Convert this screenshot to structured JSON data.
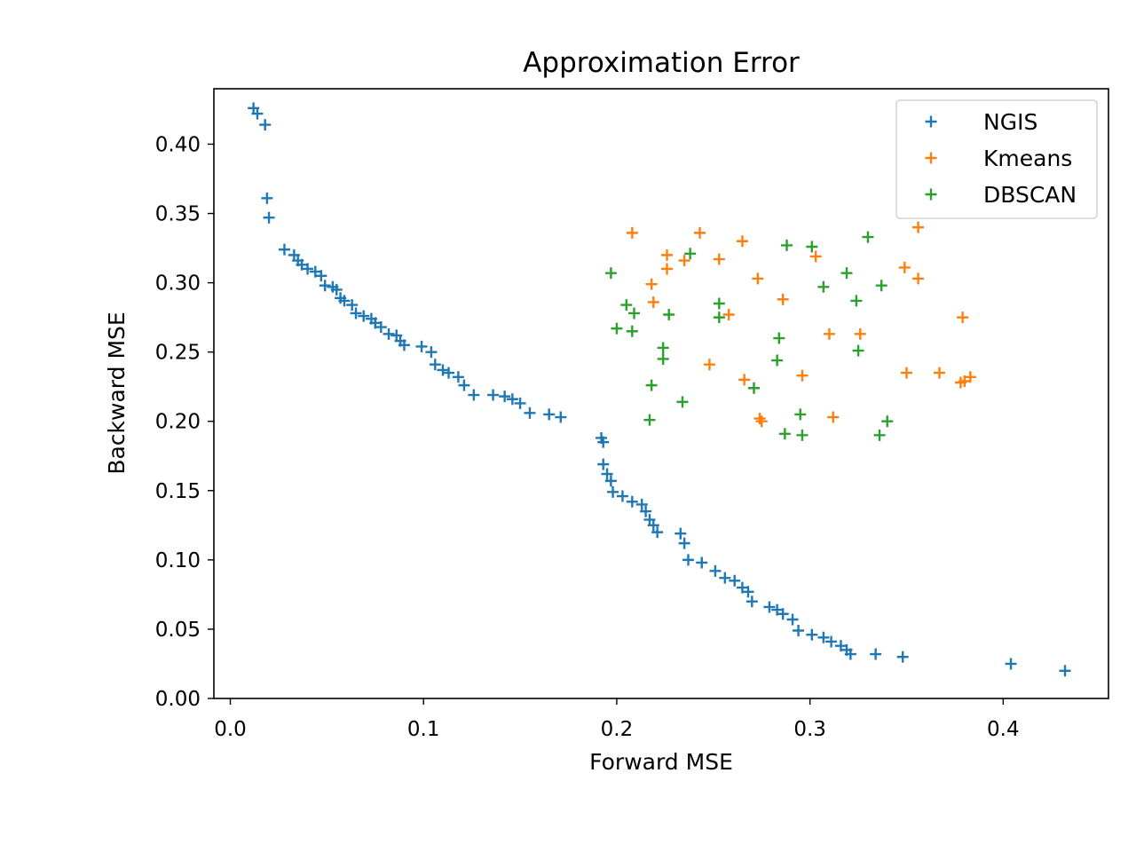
{
  "chart_data": {
    "type": "scatter",
    "title": "Approximation Error",
    "xlabel": "Forward MSE",
    "ylabel": "Backward MSE",
    "xlim": [
      -0.0085,
      0.4545
    ],
    "ylim": [
      0.0,
      0.44
    ],
    "xticks": [
      0.0,
      0.1,
      0.2,
      0.3,
      0.4
    ],
    "xtick_labels": [
      "0.0",
      "0.1",
      "0.2",
      "0.3",
      "0.4"
    ],
    "yticks": [
      0.0,
      0.05,
      0.1,
      0.15,
      0.2,
      0.25,
      0.3,
      0.35,
      0.4
    ],
    "ytick_labels": [
      "0.00",
      "0.05",
      "0.10",
      "0.15",
      "0.20",
      "0.25",
      "0.30",
      "0.35",
      "0.40"
    ],
    "grid": false,
    "marker": "+",
    "legend_position": "top-right",
    "series": [
      {
        "name": "NGIS",
        "color": "#1f77b4",
        "points": [
          [
            0.012,
            0.426
          ],
          [
            0.014,
            0.422
          ],
          [
            0.018,
            0.414
          ],
          [
            0.019,
            0.361
          ],
          [
            0.02,
            0.347
          ],
          [
            0.028,
            0.324
          ],
          [
            0.033,
            0.32
          ],
          [
            0.035,
            0.316
          ],
          [
            0.037,
            0.313
          ],
          [
            0.04,
            0.31
          ],
          [
            0.044,
            0.308
          ],
          [
            0.047,
            0.305
          ],
          [
            0.049,
            0.298
          ],
          [
            0.053,
            0.297
          ],
          [
            0.055,
            0.295
          ],
          [
            0.057,
            0.289
          ],
          [
            0.059,
            0.287
          ],
          [
            0.063,
            0.284
          ],
          [
            0.065,
            0.278
          ],
          [
            0.069,
            0.276
          ],
          [
            0.073,
            0.274
          ],
          [
            0.075,
            0.271
          ],
          [
            0.078,
            0.268
          ],
          [
            0.082,
            0.263
          ],
          [
            0.086,
            0.262
          ],
          [
            0.088,
            0.258
          ],
          [
            0.09,
            0.255
          ],
          [
            0.099,
            0.254
          ],
          [
            0.104,
            0.25
          ],
          [
            0.106,
            0.241
          ],
          [
            0.11,
            0.237
          ],
          [
            0.113,
            0.235
          ],
          [
            0.118,
            0.232
          ],
          [
            0.121,
            0.226
          ],
          [
            0.126,
            0.219
          ],
          [
            0.136,
            0.219
          ],
          [
            0.142,
            0.218
          ],
          [
            0.146,
            0.216
          ],
          [
            0.15,
            0.213
          ],
          [
            0.155,
            0.206
          ],
          [
            0.165,
            0.205
          ],
          [
            0.171,
            0.203
          ],
          [
            0.192,
            0.188
          ],
          [
            0.193,
            0.185
          ],
          [
            0.193,
            0.169
          ],
          [
            0.195,
            0.162
          ],
          [
            0.197,
            0.157
          ],
          [
            0.198,
            0.149
          ],
          [
            0.203,
            0.146
          ],
          [
            0.208,
            0.142
          ],
          [
            0.213,
            0.14
          ],
          [
            0.215,
            0.135
          ],
          [
            0.217,
            0.129
          ],
          [
            0.219,
            0.125
          ],
          [
            0.221,
            0.12
          ],
          [
            0.233,
            0.119
          ],
          [
            0.235,
            0.112
          ],
          [
            0.237,
            0.1
          ],
          [
            0.244,
            0.098
          ],
          [
            0.251,
            0.092
          ],
          [
            0.256,
            0.087
          ],
          [
            0.261,
            0.085
          ],
          [
            0.265,
            0.08
          ],
          [
            0.268,
            0.077
          ],
          [
            0.27,
            0.07
          ],
          [
            0.279,
            0.066
          ],
          [
            0.283,
            0.064
          ],
          [
            0.286,
            0.061
          ],
          [
            0.291,
            0.057
          ],
          [
            0.294,
            0.049
          ],
          [
            0.301,
            0.046
          ],
          [
            0.307,
            0.044
          ],
          [
            0.311,
            0.041
          ],
          [
            0.316,
            0.038
          ],
          [
            0.319,
            0.035
          ],
          [
            0.321,
            0.032
          ],
          [
            0.334,
            0.032
          ],
          [
            0.348,
            0.03
          ],
          [
            0.404,
            0.025
          ],
          [
            0.432,
            0.02
          ]
        ]
      },
      {
        "name": "Kmeans",
        "color": "#ff7f0e",
        "points": [
          [
            0.208,
            0.336
          ],
          [
            0.243,
            0.336
          ],
          [
            0.265,
            0.33
          ],
          [
            0.356,
            0.34
          ],
          [
            0.226,
            0.32
          ],
          [
            0.235,
            0.316
          ],
          [
            0.253,
            0.317
          ],
          [
            0.303,
            0.319
          ],
          [
            0.226,
            0.31
          ],
          [
            0.349,
            0.311
          ],
          [
            0.218,
            0.299
          ],
          [
            0.273,
            0.303
          ],
          [
            0.356,
            0.303
          ],
          [
            0.219,
            0.286
          ],
          [
            0.286,
            0.288
          ],
          [
            0.258,
            0.277
          ],
          [
            0.379,
            0.275
          ],
          [
            0.31,
            0.263
          ],
          [
            0.326,
            0.263
          ],
          [
            0.248,
            0.241
          ],
          [
            0.266,
            0.23
          ],
          [
            0.296,
            0.233
          ],
          [
            0.35,
            0.235
          ],
          [
            0.367,
            0.235
          ],
          [
            0.378,
            0.228
          ],
          [
            0.38,
            0.229
          ],
          [
            0.383,
            0.232
          ],
          [
            0.274,
            0.202
          ],
          [
            0.275,
            0.2
          ],
          [
            0.312,
            0.203
          ]
        ]
      },
      {
        "name": "DBSCAN",
        "color": "#2ca02c",
        "points": [
          [
            0.33,
            0.333
          ],
          [
            0.238,
            0.321
          ],
          [
            0.288,
            0.327
          ],
          [
            0.301,
            0.326
          ],
          [
            0.197,
            0.307
          ],
          [
            0.319,
            0.307
          ],
          [
            0.307,
            0.297
          ],
          [
            0.337,
            0.298
          ],
          [
            0.205,
            0.284
          ],
          [
            0.253,
            0.285
          ],
          [
            0.324,
            0.287
          ],
          [
            0.209,
            0.278
          ],
          [
            0.227,
            0.277
          ],
          [
            0.253,
            0.275
          ],
          [
            0.2,
            0.267
          ],
          [
            0.208,
            0.265
          ],
          [
            0.284,
            0.26
          ],
          [
            0.224,
            0.253
          ],
          [
            0.325,
            0.251
          ],
          [
            0.224,
            0.245
          ],
          [
            0.283,
            0.244
          ],
          [
            0.218,
            0.226
          ],
          [
            0.271,
            0.224
          ],
          [
            0.234,
            0.214
          ],
          [
            0.295,
            0.205
          ],
          [
            0.217,
            0.201
          ],
          [
            0.34,
            0.2
          ],
          [
            0.287,
            0.191
          ],
          [
            0.296,
            0.19
          ],
          [
            0.336,
            0.19
          ]
        ]
      }
    ]
  }
}
